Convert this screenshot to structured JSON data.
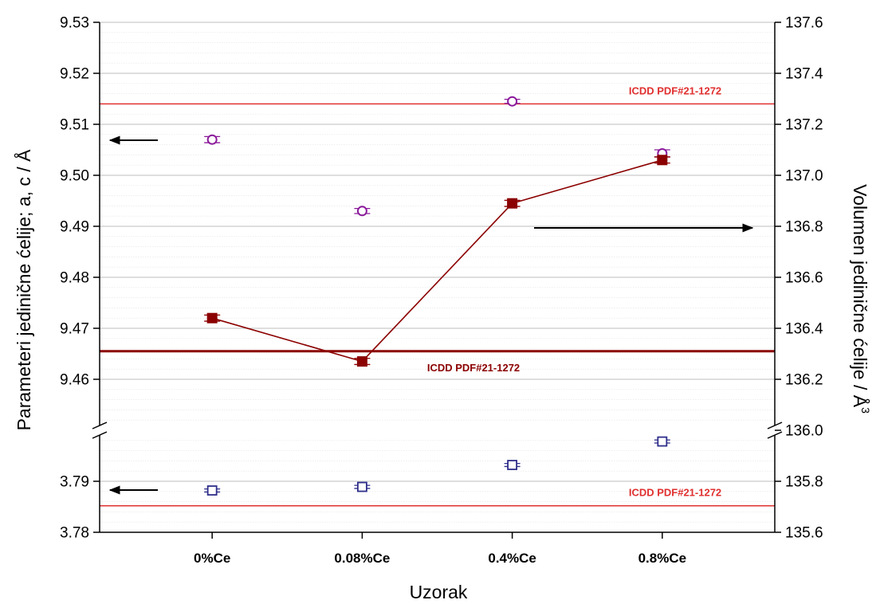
{
  "chart_data": {
    "type": "scatter",
    "xlabel": "Uzorak",
    "ylabel_left": "Parameteri jedinične ćelije; a, c / Å",
    "ylabel_right": "Volumen jedinične ćelije / Å",
    "ylabel_right_superscript": "3",
    "categories": [
      "0%Ce",
      "0.08%Ce",
      "0.4%Ce",
      "0.8%Ce"
    ],
    "y_left_upper": {
      "range": [
        9.45,
        9.53
      ],
      "ticks": [
        "9.46",
        "9.47",
        "9.48",
        "9.49",
        "9.50",
        "9.51",
        "9.52",
        "9.53"
      ]
    },
    "y_left_lower": {
      "range": [
        3.78,
        3.8
      ],
      "ticks": [
        "3.78",
        "3.79"
      ]
    },
    "y_right": {
      "range": [
        135.6,
        137.6
      ],
      "ticks": [
        "135.6",
        "135.8",
        "136.0",
        "136.2",
        "136.4",
        "136.6",
        "136.8",
        "137.0",
        "137.2",
        "137.4",
        "137.6"
      ]
    },
    "axis_break": true,
    "grid": true,
    "series": [
      {
        "axis": "left-upper",
        "marker": "circle-open",
        "color": "#8B1A9B",
        "values": [
          9.507,
          9.493,
          9.5145,
          9.5043
        ],
        "error": [
          0.0006,
          0.0005,
          0.0004,
          0.0007
        ]
      },
      {
        "axis": "right",
        "marker": "square-filled",
        "color": "#8B0000",
        "connected": true,
        "values": [
          136.44,
          136.27,
          136.89,
          137.06
        ],
        "error": [
          0.012,
          0.012,
          0.012,
          0.012
        ]
      },
      {
        "axis": "left-lower",
        "marker": "square-open",
        "color": "#2E2E8B",
        "values": [
          3.7882,
          3.7889,
          3.7932,
          3.7978
        ],
        "error": [
          0.0003,
          0.0003,
          0.0003,
          0.0003
        ]
      }
    ],
    "reference_lines": [
      {
        "axis": "left-upper",
        "value": 9.514,
        "color": "#E03030",
        "label": "ICDD PDF#21-1272"
      },
      {
        "axis": "right",
        "value": 136.31,
        "color": "#8B0000",
        "label": "ICDD PDF#21-1272"
      },
      {
        "axis": "left-lower",
        "value": 3.7852,
        "color": "#E03030",
        "label": "ICDD PDF#21-1272"
      }
    ],
    "arrows": [
      {
        "direction": "left",
        "points_to": "left-upper"
      },
      {
        "direction": "right",
        "points_to": "right"
      },
      {
        "direction": "left",
        "points_to": "left-lower"
      }
    ]
  }
}
